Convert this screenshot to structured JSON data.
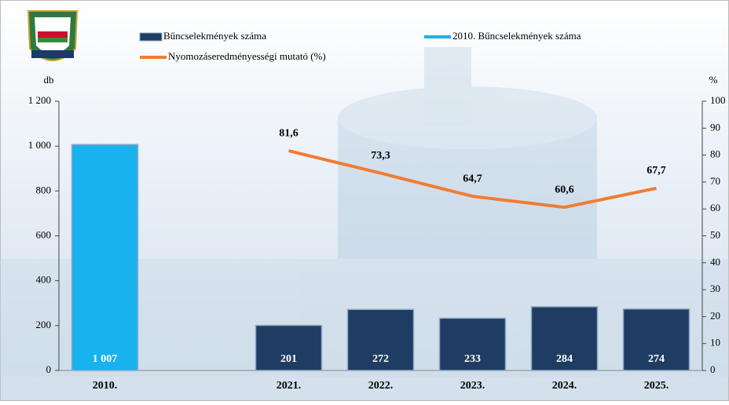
{
  "chart_data": {
    "type": "bar",
    "categories": [
      "2010.",
      null,
      "2021.",
      "2022.",
      "2023.",
      "2024.",
      "2025."
    ],
    "series": [
      {
        "name": "Bűncselekmények száma",
        "type": "bar",
        "color": "#1f3d63",
        "values": [
          null,
          null,
          201,
          272,
          233,
          284,
          274
        ]
      },
      {
        "name": "2010. Bűncselekmények száma",
        "type": "bar",
        "color": "#18b2ee",
        "values": [
          1007,
          null,
          null,
          null,
          null,
          null,
          null
        ],
        "value_labels": [
          "1 007",
          null,
          null,
          null,
          null,
          null,
          null
        ]
      },
      {
        "name": "Nyomozáseredményességi mutató (%)",
        "type": "line",
        "axis": "y2",
        "color": "#ef7d32",
        "values": [
          null,
          null,
          81.6,
          73.3,
          64.7,
          60.6,
          67.7
        ],
        "value_labels": [
          null,
          null,
          "81,6",
          "73,3",
          "64,7",
          "60,6",
          "67,7"
        ]
      }
    ],
    "y_label": "db",
    "y2_label": "%",
    "ylim": [
      0,
      1200
    ],
    "yticks": [
      0,
      200,
      400,
      600,
      800,
      {
        "value": 1000,
        "label": "1 000"
      },
      {
        "value": 1200,
        "label": "1 200"
      }
    ],
    "y2lim": [
      0,
      100
    ],
    "y2ticks": [
      0,
      10,
      20,
      30,
      40,
      50,
      60,
      70,
      80,
      90,
      100
    ]
  }
}
